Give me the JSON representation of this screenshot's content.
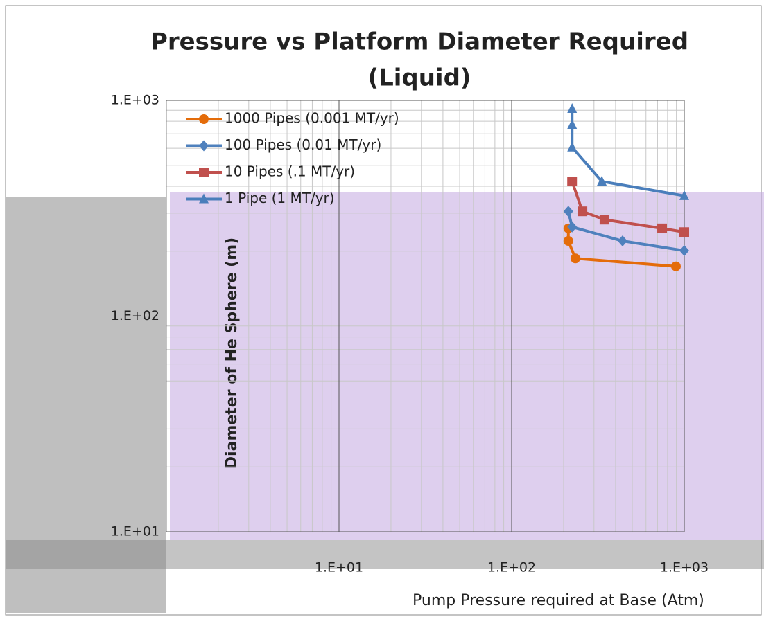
{
  "chart_data": {
    "type": "line",
    "title": "Pressure vs Platform Diameter Required",
    "subtitle": "(Liquid)",
    "x_label": "Pump Pressure required at Base (Atm)",
    "y_label": "Diameter of He Sphere (m)",
    "xlog": true,
    "ylog": true,
    "grid": true,
    "minor_grid": true,
    "legend": "top-left",
    "xlim": [
      1,
      1000
    ],
    "ylim": [
      10,
      1000
    ],
    "xticks": [
      {
        "value": 10,
        "label": "1.E+01"
      },
      {
        "value": 100,
        "label": "1.E+02"
      },
      {
        "value": 1000,
        "label": "1.E+03"
      }
    ],
    "yticks": [
      {
        "value": 10,
        "label": "1.E+01"
      },
      {
        "value": 100,
        "label": "1.E+02"
      },
      {
        "value": 1000,
        "label": "1.E+03"
      }
    ],
    "series": [
      {
        "name": "1000 Pipes (0.001 MT/yr)",
        "color": "#e46c0a",
        "marker": "circle",
        "x": [
          213,
          213,
          234,
          895
        ],
        "values": [
          255,
          223,
          185,
          170
        ]
      },
      {
        "name": "100 Pipes (0.01 MT/yr)",
        "color": "#4f81bd",
        "marker": "diamond",
        "x": [
          213,
          224,
          439,
          1000
        ],
        "values": [
          306,
          259,
          223,
          201
        ]
      },
      {
        "name": "10 Pipes (.1 MT/yr)",
        "color": "#c0504d",
        "marker": "square",
        "x": [
          224,
          257,
          345,
          744,
          1000
        ],
        "values": [
          421,
          306,
          280,
          255,
          245
        ]
      },
      {
        "name": "1 Pipe (1 MT/yr)",
        "color": "#4a7ebb",
        "marker": "triangle",
        "x": [
          224,
          224,
          224,
          333,
          1000
        ],
        "values": [
          915,
          772,
          606,
          421,
          361
        ]
      }
    ]
  }
}
